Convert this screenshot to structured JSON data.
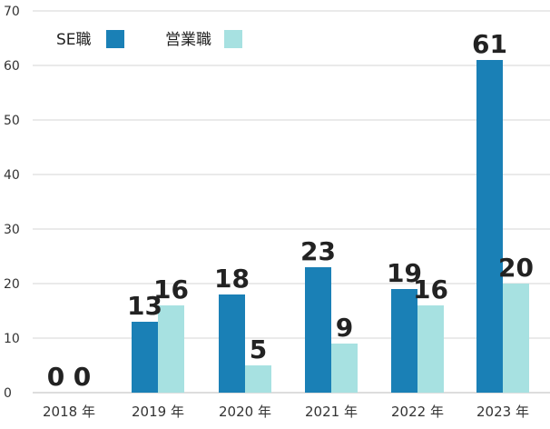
{
  "chart_data": {
    "type": "bar",
    "categories": [
      "2018 年",
      "2019 年",
      "2020 年",
      "2021 年",
      "2022 年",
      "2023 年"
    ],
    "series": [
      {
        "name": "SE職",
        "values": [
          0,
          13,
          18,
          23,
          19,
          61
        ],
        "color": "#1a80b6"
      },
      {
        "name": "営業職",
        "values": [
          0,
          16,
          5,
          9,
          16,
          20
        ],
        "color": "#a7e1e1"
      }
    ],
    "ylim": [
      0,
      70
    ],
    "yticks": [
      0,
      10,
      20,
      30,
      40,
      50,
      60,
      70
    ],
    "grid": true,
    "legend_position": "top-left",
    "data_labels": true
  }
}
